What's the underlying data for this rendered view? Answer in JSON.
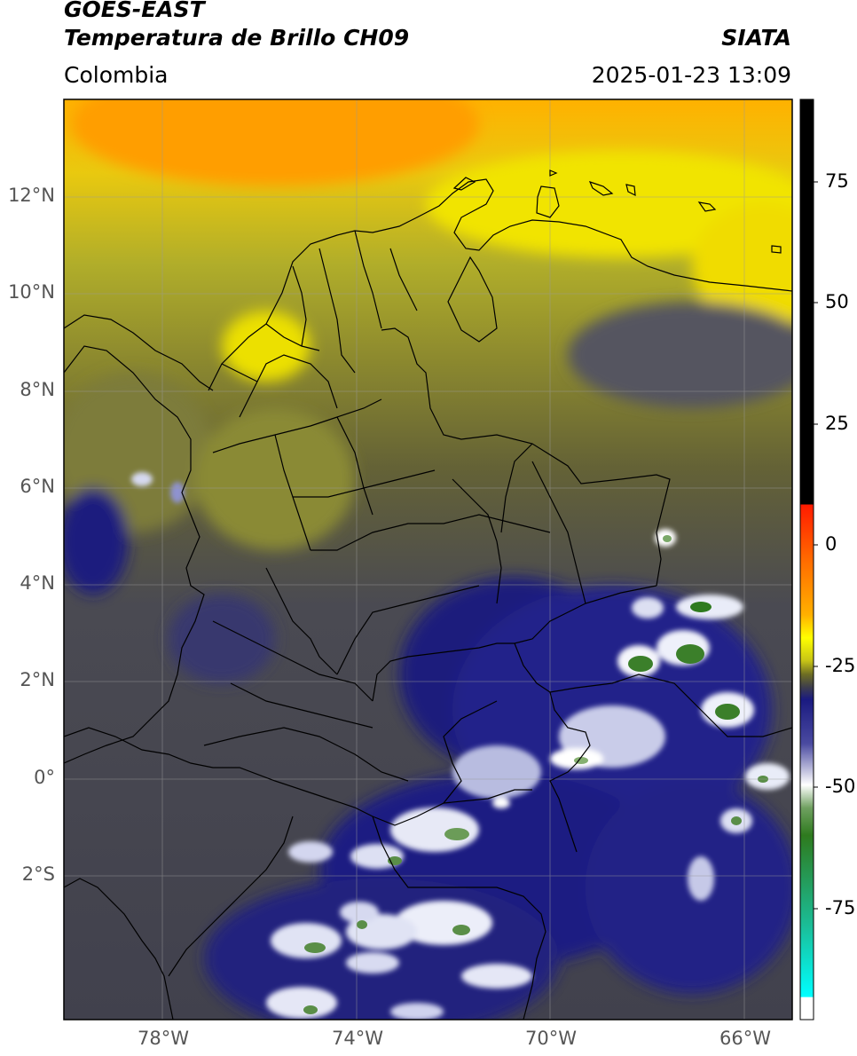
{
  "header": {
    "satellite": "GOES-EAST",
    "product": "Temperatura de Brillo CH09",
    "region": "Colombia",
    "agency": "SIATA",
    "datetime": "2025-01-23 13:09"
  },
  "axes": {
    "lat_labels": [
      "12°N",
      "10°N",
      "8°N",
      "6°N",
      "4°N",
      "2°N",
      "0°",
      "2°S"
    ],
    "lon_labels": [
      "78°W",
      "74°W",
      "70°W",
      "66°W"
    ]
  },
  "colorbar": {
    "ticks": [
      "75",
      "50",
      "25",
      "0",
      "-25",
      "-50",
      "-75"
    ],
    "colors": {
      "black": "#000000",
      "red": "#ff1a00",
      "orange": "#ff8c00",
      "yellow": "#ffff00",
      "olive": "#6d6d24",
      "gray": "#4a4a52",
      "navy": "#1a1a7a",
      "white": "#ffffff",
      "green": "#3a7a26",
      "teal": "#1abf9a",
      "cyan": "#00ffff"
    }
  }
}
